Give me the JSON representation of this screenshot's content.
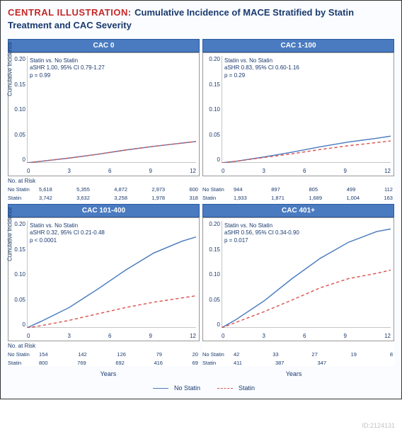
{
  "title_prefix": "CENTRAL ILLUSTRATION:",
  "title_main": "Cumulative Incidence of MACE Stratified by Statin Treatment and CAC Severity",
  "ylabel": "Cumulative Incidence",
  "xlabel": "Years",
  "no_at_risk_label": "No. at Risk",
  "xlim": [
    0,
    12
  ],
  "ylim": [
    0,
    0.2
  ],
  "xticks": [
    "0",
    "3",
    "6",
    "9",
    "12"
  ],
  "yticks": [
    "0.20",
    "0.15",
    "0.10",
    "0.05",
    "0"
  ],
  "colors": {
    "no_statin": "#4a7bc0",
    "statin": "#d9534f",
    "panel_header": "#4a7bc0",
    "axis": "#666"
  },
  "legend": {
    "no_statin": "No Statin",
    "statin": "Statin"
  },
  "risk_labels": {
    "no_statin": "No Statin",
    "statin": "Statin"
  },
  "panels": [
    {
      "header": "CAC 0",
      "stats": [
        "Statin vs. No Statin",
        "aSHR 1.00, 95% CI 0.79-1.27",
        "p = 0.99"
      ],
      "show_ylabel": true,
      "no_statin": [
        [
          0,
          0
        ],
        [
          1,
          0.003
        ],
        [
          3,
          0.009
        ],
        [
          5,
          0.016
        ],
        [
          7,
          0.024
        ],
        [
          9,
          0.031
        ],
        [
          11,
          0.037
        ],
        [
          12,
          0.04
        ]
      ],
      "statin": [
        [
          0,
          0
        ],
        [
          1,
          0.003
        ],
        [
          3,
          0.009
        ],
        [
          5,
          0.016
        ],
        [
          7,
          0.024
        ],
        [
          9,
          0.031
        ],
        [
          11,
          0.037
        ],
        [
          12,
          0.04
        ]
      ],
      "risk": {
        "no_statin": [
          "5,618",
          "5,355",
          "4,872",
          "2,973",
          "600"
        ],
        "statin": [
          "3,742",
          "3,632",
          "3,258",
          "1,978",
          "318"
        ]
      }
    },
    {
      "header": "CAC 1-100",
      "stats": [
        "Statin vs. No Statin",
        "aSHR 0.83, 95% CI 0.60-1.16",
        "p = 0.29"
      ],
      "show_ylabel": false,
      "no_statin": [
        [
          0,
          0
        ],
        [
          1,
          0.003
        ],
        [
          3,
          0.011
        ],
        [
          5,
          0.02
        ],
        [
          7,
          0.03
        ],
        [
          9,
          0.039
        ],
        [
          11,
          0.046
        ],
        [
          12,
          0.05
        ]
      ],
      "statin": [
        [
          0,
          0
        ],
        [
          1,
          0.003
        ],
        [
          3,
          0.01
        ],
        [
          5,
          0.017
        ],
        [
          7,
          0.025
        ],
        [
          9,
          0.032
        ],
        [
          11,
          0.038
        ],
        [
          12,
          0.041
        ]
      ],
      "risk": {
        "no_statin": [
          "944",
          "897",
          "805",
          "499",
          "112"
        ],
        "statin": [
          "1,933",
          "1,871",
          "1,689",
          "1,004",
          "163"
        ]
      }
    },
    {
      "header": "CAC 101-400",
      "stats": [
        "Statin vs. No Statin",
        "aSHR 0.32, 95% CI 0.21-0.48",
        "p < 0.0001"
      ],
      "show_ylabel": true,
      "no_statin": [
        [
          0,
          0
        ],
        [
          1,
          0.012
        ],
        [
          3,
          0.038
        ],
        [
          5,
          0.072
        ],
        [
          7,
          0.108
        ],
        [
          9,
          0.14
        ],
        [
          11,
          0.162
        ],
        [
          12,
          0.17
        ]
      ],
      "statin": [
        [
          0,
          0
        ],
        [
          1,
          0.004
        ],
        [
          3,
          0.014
        ],
        [
          5,
          0.026
        ],
        [
          7,
          0.038
        ],
        [
          9,
          0.048
        ],
        [
          11,
          0.056
        ],
        [
          12,
          0.06
        ]
      ],
      "risk": {
        "no_statin": [
          "154",
          "142",
          "126",
          "79",
          "20"
        ],
        "statin": [
          "800",
          "769",
          "692",
          "416",
          "69"
        ]
      }
    },
    {
      "header": "CAC 401+",
      "stats": [
        "Statin vs. No Statin",
        "aSHR 0.56, 95% CI 0.34-0.90",
        "p = 0.017"
      ],
      "show_ylabel": false,
      "no_statin": [
        [
          0,
          0
        ],
        [
          1,
          0.015
        ],
        [
          3,
          0.05
        ],
        [
          5,
          0.092
        ],
        [
          7,
          0.13
        ],
        [
          9,
          0.16
        ],
        [
          11,
          0.18
        ],
        [
          12,
          0.185
        ]
      ],
      "statin": [
        [
          0,
          0
        ],
        [
          1,
          0.01
        ],
        [
          3,
          0.03
        ],
        [
          5,
          0.052
        ],
        [
          7,
          0.075
        ],
        [
          9,
          0.092
        ],
        [
          11,
          0.102
        ],
        [
          12,
          0.108
        ]
      ],
      "risk": {
        "no_statin": [
          "42",
          "33",
          "27",
          "19",
          "8"
        ],
        "statin": [
          "411",
          "387",
          "347",
          "",
          ""
        ]
      }
    }
  ],
  "watermark": "ID:2124131"
}
